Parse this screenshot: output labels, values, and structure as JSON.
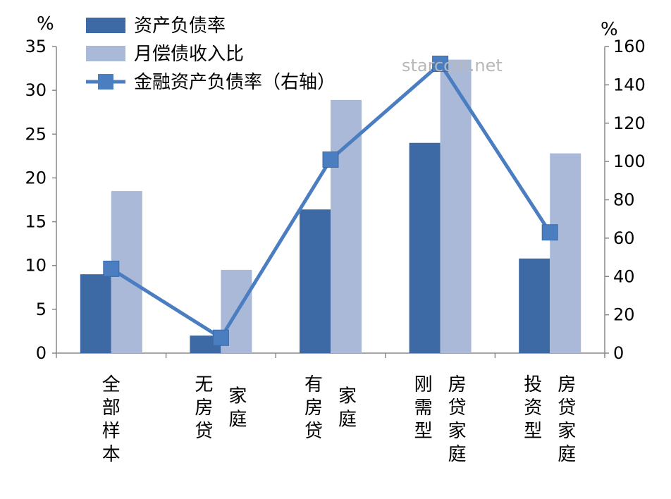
{
  "watermark": "starccm.net",
  "chart_data": {
    "type": "bar",
    "categories": [
      [
        "全",
        "部",
        "样",
        "本"
      ],
      [
        "无",
        "房",
        "贷",
        "家",
        "庭"
      ],
      [
        "有",
        "房",
        "贷",
        "家",
        "庭"
      ],
      [
        "刚",
        "需",
        "型",
        "房",
        "贷",
        "家",
        "庭"
      ],
      [
        "投",
        "资",
        "型",
        "房",
        "贷",
        "家",
        "庭"
      ]
    ],
    "left_axis": {
      "unit": "%",
      "ylim": [
        0,
        35
      ],
      "ticks": [
        "0",
        "5",
        "10",
        "15",
        "20",
        "25",
        "30",
        "35"
      ]
    },
    "right_axis": {
      "unit": "%",
      "ylim": [
        0,
        160
      ],
      "ticks": [
        "0",
        "20",
        "40",
        "60",
        "80",
        "100",
        "120",
        "140",
        "160"
      ]
    },
    "series": [
      {
        "name": "资产负债率",
        "type": "bar",
        "axis": "left",
        "color": "#3d6aa5",
        "values": [
          9.0,
          2.0,
          16.4,
          24.0,
          10.8
        ]
      },
      {
        "name": "月偿债收入比",
        "type": "bar",
        "axis": "left",
        "color": "#aab9d8",
        "values": [
          18.5,
          9.5,
          28.9,
          33.5,
          22.8
        ]
      },
      {
        "name": "金融资产负债率（右轴）",
        "type": "line",
        "axis": "right",
        "color": "#4a7ec0",
        "marker": "square",
        "values": [
          44,
          8,
          101,
          151,
          63
        ]
      }
    ],
    "legend_position": "top-left",
    "grid": false
  }
}
